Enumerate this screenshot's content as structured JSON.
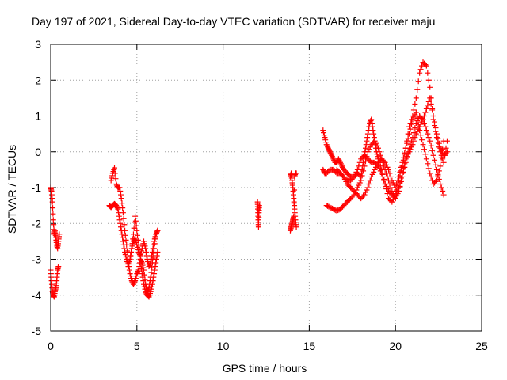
{
  "chart_data": {
    "type": "scatter",
    "title": "Day 197 of 2021, Sidereal Day-to-day VTEC variation (SDTVAR) for receiver maju",
    "xlabel": "GPS time / hours",
    "ylabel": "SDTVAR / TECUs",
    "xlim": [
      0,
      25
    ],
    "ylim": [
      -5,
      3
    ],
    "xticks": [
      0,
      5,
      10,
      15,
      20,
      25
    ],
    "yticks": [
      -5,
      -4,
      -3,
      -2,
      -1,
      0,
      1,
      2,
      3
    ],
    "grid": true,
    "marker": "+",
    "marker_color": "#ff0000",
    "series": [
      {
        "name": "SDTVAR",
        "segments": [
          {
            "x": [
              0.0,
              0.05,
              0.1,
              0.15,
              0.2,
              0.25,
              0.3,
              0.35,
              0.4,
              0.45,
              0.5
            ],
            "y": [
              -1.0,
              -1.1,
              -1.4,
              -1.9,
              -2.3,
              -2.2,
              -2.4,
              -2.6,
              -2.7,
              -2.5,
              -2.3
            ]
          },
          {
            "x": [
              0.0,
              0.05,
              0.1,
              0.15,
              0.2,
              0.25,
              0.3,
              0.35,
              0.4,
              0.45
            ],
            "y": [
              -3.3,
              -3.6,
              -3.9,
              -4.0,
              -4.05,
              -3.9,
              -3.8,
              -3.6,
              -3.3,
              -3.2
            ]
          },
          {
            "x": [
              3.5,
              3.6,
              3.7,
              3.8,
              3.9,
              4.0,
              4.1,
              4.2,
              4.3,
              4.4,
              4.5,
              4.6,
              4.7,
              4.8,
              4.9,
              5.0,
              5.1,
              5.2,
              5.3,
              5.4,
              5.5,
              5.6,
              5.7,
              5.8,
              5.9,
              6.0,
              6.1,
              6.2
            ],
            "y": [
              -0.8,
              -0.6,
              -0.45,
              -0.9,
              -1.0,
              -1.0,
              -1.3,
              -1.7,
              -2.2,
              -2.6,
              -3.1,
              -3.4,
              -3.6,
              -3.7,
              -3.6,
              -3.4,
              -3.3,
              -3.0,
              -3.1,
              -3.3,
              -3.7,
              -3.9,
              -3.8,
              -3.5,
              -3.1,
              -2.7,
              -2.3,
              -2.2
            ]
          },
          {
            "x": [
              3.4,
              3.5,
              3.6,
              3.7,
              3.8,
              3.9,
              4.0,
              4.1,
              4.2,
              4.3,
              4.4,
              4.5,
              4.6,
              4.7,
              4.8,
              4.9,
              5.0,
              5.1,
              5.2,
              5.3,
              5.4,
              5.5,
              5.6,
              5.7,
              5.8,
              5.9,
              6.0,
              6.1,
              6.2
            ],
            "y": [
              -1.5,
              -1.55,
              -1.5,
              -1.45,
              -1.5,
              -1.6,
              -1.9,
              -2.2,
              -2.5,
              -2.8,
              -3.0,
              -3.2,
              -3.0,
              -2.7,
              -2.3,
              -1.8,
              -2.2,
              -2.6,
              -3.0,
              -3.4,
              -3.7,
              -3.9,
              -4.0,
              -4.05,
              -3.9,
              -3.7,
              -3.4,
              -3.1,
              -2.8
            ]
          },
          {
            "x": [
              4.6,
              4.7,
              4.8,
              4.9,
              5.0,
              5.1,
              5.2,
              5.3,
              5.4,
              5.5,
              5.6,
              5.7,
              5.8,
              5.9,
              6.0,
              6.1,
              6.2
            ],
            "y": [
              -3.0,
              -2.7,
              -2.5,
              -2.4,
              -2.6,
              -2.8,
              -2.9,
              -2.7,
              -2.5,
              -2.7,
              -3.0,
              -3.2,
              -3.1,
              -2.8,
              -2.5,
              -2.3,
              -2.2
            ]
          },
          {
            "x": [
              12.0,
              12.02,
              12.04,
              12.06,
              12.08,
              12.1
            ],
            "y": [
              -1.4,
              -1.6,
              -1.9,
              -2.1,
              -1.7,
              -1.5
            ]
          },
          {
            "x": [
              13.9,
              13.95,
              14.0,
              14.05,
              14.1,
              14.15,
              14.2,
              14.25
            ],
            "y": [
              -0.7,
              -0.6,
              -0.8,
              -1.0,
              -1.3,
              -1.6,
              -1.9,
              -2.1
            ]
          },
          {
            "x": [
              13.9,
              13.95,
              14.0,
              14.05,
              14.1,
              14.15,
              14.2,
              14.25
            ],
            "y": [
              -2.2,
              -2.1,
              -2.0,
              -1.9,
              -1.8,
              -0.7,
              -0.6,
              -0.6
            ]
          },
          {
            "x": [
              15.8,
              15.9,
              16.0,
              16.1,
              16.2,
              16.3,
              16.4,
              16.5,
              16.6,
              16.7,
              16.8,
              16.9,
              17.0,
              17.2,
              17.4,
              17.6,
              17.8,
              18.0,
              18.1,
              18.2,
              18.3,
              18.4,
              18.5,
              18.6,
              18.7,
              18.8,
              18.9,
              19.0,
              19.2,
              19.4,
              19.6,
              19.8,
              20.0,
              20.2,
              20.4,
              20.6,
              20.8,
              21.0,
              21.2,
              21.4,
              21.6,
              21.8,
              22.0,
              22.2,
              22.4,
              22.6,
              22.8,
              23.0
            ],
            "y": [
              0.6,
              0.4,
              0.2,
              0.1,
              0.0,
              -0.1,
              -0.2,
              -0.3,
              -0.3,
              -0.2,
              -0.3,
              -0.4,
              -0.5,
              -0.6,
              -0.7,
              -0.7,
              -0.6,
              -0.7,
              -0.4,
              -0.1,
              0.2,
              0.5,
              0.8,
              0.9,
              0.6,
              0.3,
              0.0,
              -0.2,
              -0.5,
              -0.9,
              -1.3,
              -1.4,
              -1.2,
              -0.8,
              -0.4,
              0.1,
              0.7,
              1.0,
              1.5,
              2.2,
              2.5,
              2.4,
              1.8,
              0.9,
              0.4,
              0.0,
              -0.3,
              0.3
            ]
          },
          {
            "x": [
              15.8,
              15.9,
              16.0,
              16.2,
              16.4,
              16.6,
              16.8,
              17.0,
              17.2,
              17.4,
              17.6,
              17.8,
              18.0,
              18.2,
              18.4,
              18.6,
              18.8,
              19.0,
              19.2,
              19.4,
              19.6,
              19.8,
              20.0,
              20.2,
              20.4,
              20.6,
              20.8,
              21.0,
              21.2,
              21.4,
              21.6,
              21.8,
              22.0,
              22.2,
              22.4,
              22.6,
              22.8,
              23.0
            ],
            "y": [
              -0.5,
              -0.6,
              -0.6,
              -0.5,
              -0.5,
              -0.6,
              -0.6,
              -0.7,
              -0.8,
              -0.8,
              -0.7,
              -0.5,
              -0.2,
              -0.1,
              -0.2,
              -0.3,
              -0.3,
              -0.4,
              -0.6,
              -0.9,
              -1.1,
              -1.2,
              -1.3,
              -1.0,
              -0.6,
              -0.2,
              0.0,
              0.2,
              0.5,
              0.7,
              0.9,
              1.2,
              1.5,
              1.0,
              0.5,
              0.1,
              -0.1,
              0.0
            ]
          },
          {
            "x": [
              16.0,
              16.2,
              16.4,
              16.6,
              16.8,
              17.0,
              17.2,
              17.4,
              17.6,
              17.8,
              18.0,
              18.2,
              18.4,
              18.6,
              18.8,
              19.0,
              19.2,
              19.4,
              19.6,
              19.8,
              20.0,
              20.2,
              20.4,
              20.6,
              20.8,
              21.0,
              21.2,
              21.4,
              21.6,
              21.8,
              22.0,
              22.2,
              22.4,
              22.6,
              22.8
            ],
            "y": [
              -1.5,
              -1.55,
              -1.6,
              -1.65,
              -1.6,
              -1.5,
              -1.4,
              -1.3,
              -1.2,
              -1.0,
              -0.8,
              -0.4,
              0.0,
              0.2,
              0.3,
              0.1,
              -0.2,
              -0.5,
              -0.8,
              -1.1,
              -1.3,
              -1.1,
              -0.7,
              -0.3,
              0.1,
              0.4,
              0.8,
              1.0,
              0.9,
              0.6,
              0.3,
              -0.1,
              -0.5,
              -0.9,
              -1.2
            ]
          },
          {
            "x": [
              16.6,
              16.8,
              17.0,
              17.2,
              17.4,
              17.6,
              17.8,
              18.0,
              18.2,
              18.4,
              18.6,
              18.8,
              19.0,
              19.2,
              19.4,
              19.6,
              19.8,
              20.0,
              20.2,
              20.4,
              20.6,
              20.8,
              21.0,
              21.2,
              21.4,
              21.6,
              21.8,
              22.0,
              22.2,
              22.4,
              22.6,
              22.8
            ],
            "y": [
              -0.5,
              -0.6,
              -0.7,
              -0.9,
              -1.0,
              -1.1,
              -1.2,
              -1.3,
              -1.2,
              -1.0,
              -0.7,
              -0.5,
              -0.3,
              -0.2,
              -0.3,
              -0.5,
              -0.8,
              -1.0,
              -0.7,
              -0.3,
              0.1,
              0.5,
              0.9,
              1.1,
              0.6,
              0.2,
              -0.2,
              -0.6,
              -0.9,
              -0.8,
              -0.4,
              0.3
            ]
          }
        ]
      }
    ]
  }
}
